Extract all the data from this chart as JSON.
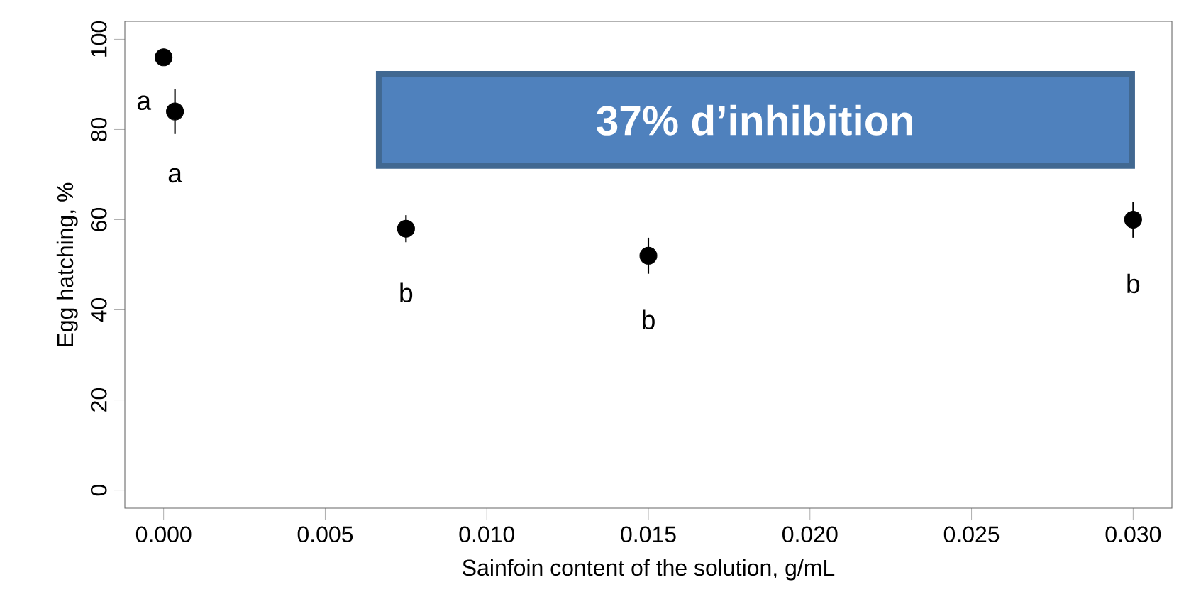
{
  "chart_data": {
    "type": "scatter",
    "xlabel": "Sainfoin content of the solution, g/mL",
    "ylabel": "Egg hatching, %",
    "x": [
      0,
      0.00035,
      0.0075,
      0.015,
      0.03
    ],
    "series": [
      {
        "color": "#000000",
        "values": [
          96,
          84,
          58,
          52,
          60
        ],
        "errors": [
          null,
          5,
          3,
          4,
          4
        ]
      }
    ],
    "marker": "circle",
    "xlim": [
      -0.0012,
      0.0312
    ],
    "ylim": [
      -4,
      104
    ],
    "xticks": [
      {
        "value": 0,
        "label": "0.000"
      },
      {
        "value": 0.005,
        "label": "0.005"
      },
      {
        "value": 0.01,
        "label": "0.010"
      },
      {
        "value": 0.015,
        "label": "0.015"
      },
      {
        "value": 0.02,
        "label": "0.020"
      },
      {
        "value": 0.025,
        "label": "0.025"
      },
      {
        "value": 0.03,
        "label": "0.030"
      }
    ],
    "yticks": [
      0,
      20,
      40,
      60,
      80,
      100
    ],
    "annotations": [
      "37% d’inhibition",
      {
        "text": "a",
        "x": 0,
        "y": 96
      },
      {
        "text": "a",
        "x": 0.00035,
        "y": 84
      },
      {
        "text": "b",
        "x": 0.0075,
        "y": 58
      },
      {
        "text": "b",
        "x": 0.015,
        "y": 52
      },
      {
        "text": "b",
        "x": 0.03,
        "y": 60
      }
    ]
  }
}
